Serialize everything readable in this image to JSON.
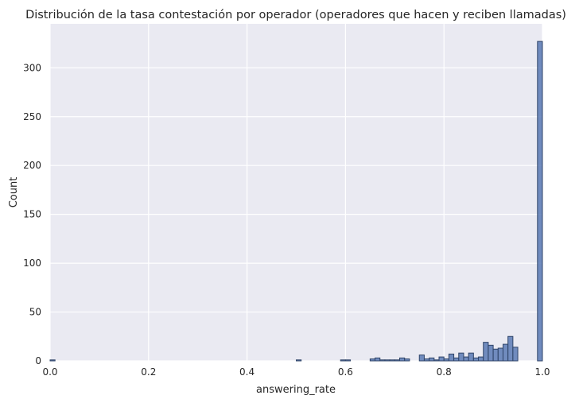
{
  "chart_data": {
    "type": "bar",
    "title": "Distribución de la tasa contestación por operador (operadores que hacen y reciben llamadas)",
    "xlabel": "answering_rate",
    "ylabel": "Count",
    "xlim": [
      0,
      1
    ],
    "ylim": [
      0,
      345
    ],
    "x_ticks": [
      "0.0",
      "0.2",
      "0.4",
      "0.6",
      "0.8",
      "1.0"
    ],
    "y_ticks": [
      "0",
      "50",
      "100",
      "150",
      "200",
      "250",
      "300"
    ],
    "grid": true,
    "bin_width": 0.01,
    "bins": [
      {
        "x": 0.0,
        "count": 1
      },
      {
        "x": 0.5,
        "count": 1
      },
      {
        "x": 0.59,
        "count": 1
      },
      {
        "x": 0.6,
        "count": 1
      },
      {
        "x": 0.65,
        "count": 2
      },
      {
        "x": 0.66,
        "count": 3
      },
      {
        "x": 0.67,
        "count": 1
      },
      {
        "x": 0.68,
        "count": 1
      },
      {
        "x": 0.69,
        "count": 1
      },
      {
        "x": 0.7,
        "count": 1
      },
      {
        "x": 0.71,
        "count": 3
      },
      {
        "x": 0.72,
        "count": 2
      },
      {
        "x": 0.75,
        "count": 6
      },
      {
        "x": 0.76,
        "count": 2
      },
      {
        "x": 0.77,
        "count": 3
      },
      {
        "x": 0.78,
        "count": 1
      },
      {
        "x": 0.79,
        "count": 4
      },
      {
        "x": 0.8,
        "count": 2
      },
      {
        "x": 0.81,
        "count": 7
      },
      {
        "x": 0.82,
        "count": 3
      },
      {
        "x": 0.83,
        "count": 8
      },
      {
        "x": 0.84,
        "count": 4
      },
      {
        "x": 0.85,
        "count": 8
      },
      {
        "x": 0.86,
        "count": 3
      },
      {
        "x": 0.87,
        "count": 4
      },
      {
        "x": 0.88,
        "count": 19
      },
      {
        "x": 0.89,
        "count": 16
      },
      {
        "x": 0.9,
        "count": 12
      },
      {
        "x": 0.91,
        "count": 13
      },
      {
        "x": 0.92,
        "count": 17
      },
      {
        "x": 0.93,
        "count": 25
      },
      {
        "x": 0.94,
        "count": 14
      },
      {
        "x": 0.99,
        "count": 327
      }
    ]
  }
}
